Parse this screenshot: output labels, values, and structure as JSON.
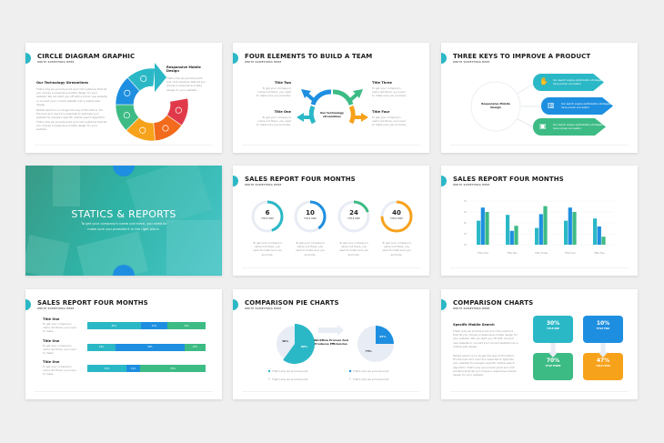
{
  "colors": {
    "teal": "#2bb8c6",
    "blue": "#1e8fe0",
    "green": "#3dbb85",
    "orange": "#f7a21b",
    "dark_orange": "#f26a1b",
    "red": "#e03a4a",
    "track": "#e8ecf4"
  },
  "subtitle": "WRITE SOMETHING HERE",
  "slide1": {
    "title": "CIRCLE DIAGRAM GRAPHIC",
    "heading": "Our Technology Streamlines",
    "para1": "That's why we provide point and click solutions that let you choose a responsive mobile design for your website. We can start you off with a brand new website or convert your current website into a mobile web design.",
    "para2": "Mobile search is no longer the way of the future. It's the here and now! It is essential to optimize your website for Google's specific mobile search algorithm. That's why we provide point and click solutions that let you choose a responsive mobile design for your website.",
    "callout_title": "Responsive Mobile Design",
    "callout_text": "That's why we provide point and click solutions that let you choose a responsive mobile design for your website.",
    "segments": [
      "teal",
      "blue",
      "green",
      "orange",
      "dark_orange",
      "red"
    ]
  },
  "slide2": {
    "title": "FOUR ELEMENTS TO BUILD A TEAM",
    "center": "Our technology streamlines",
    "items": [
      {
        "title": "Title Two",
        "text": "To get your company's name out there, you need to make sure you promote."
      },
      {
        "title": "Title One",
        "text": "To get your company's name out there, you need to make sure you promote."
      },
      {
        "title": "Title Three",
        "text": "To get your company's name out there, you need to make sure you promote."
      },
      {
        "title": "Title Four",
        "text": "To get your company's name out there, you need to make sure you promote."
      }
    ]
  },
  "slide3": {
    "title": "THREE KEYS TO IMPROVE A PRODUCT",
    "center": "Responsive Mobile Design",
    "keys": [
      {
        "text": "Our search engine optimization strategies have proven successful",
        "icon": "hand-coin-icon"
      },
      {
        "text": "Our search engine optimization strategies have proven successful",
        "icon": "bar-chart-icon"
      },
      {
        "text": "Our search engine optimization strategies have proven successful",
        "icon": "briefcase-icon"
      }
    ]
  },
  "slide4": {
    "title": "STATICS & REPORTS",
    "text": "To get your company's name out there, you need to make sure you promote it in the right place."
  },
  "slide5": {
    "title": "SALES REPORT FOUR MONTHS",
    "donuts": [
      {
        "value": "6",
        "label": "TITLE ONE",
        "progress": 0.45,
        "color": "teal"
      },
      {
        "value": "10",
        "label": "TITLE ONE",
        "progress": 0.4,
        "color": "blue"
      },
      {
        "value": "24",
        "label": "TITLE ONE",
        "progress": 0.2,
        "color": "green"
      },
      {
        "value": "40",
        "label": "TITLE ONE",
        "progress": 0.75,
        "color": "orange"
      }
    ],
    "caption": "To get your company's name out there, you need to make sure you promote."
  },
  "slide6": {
    "title": "SALES REPORT FOUR MONTHS"
  },
  "chart_data": {
    "type": "bar",
    "categories": [
      "Title One",
      "Title Two",
      "Title Three",
      "Title Four",
      "Title Five"
    ],
    "series": [
      {
        "values": [
          43,
          51,
          33,
          43,
          46
        ],
        "color": "#2bb8c6"
      },
      {
        "values": [
          61,
          29,
          52,
          61,
          35
        ],
        "color": "#1e8fe0"
      },
      {
        "values": [
          55,
          36,
          63,
          55,
          21
        ],
        "color": "#3dbb85"
      }
    ],
    "yticks": [
      "70",
      "55",
      "40",
      "25",
      "10"
    ],
    "ylim": [
      10,
      70
    ],
    "grid": true,
    "title": "",
    "xlabel": "",
    "ylabel": ""
  },
  "slide7": {
    "title": "SALES REPORT FOUR MONTHS",
    "rows": [
      {
        "title": "Title One",
        "text": "To get your company's name out there, you need to make.",
        "segments": [
          {
            "v": 45,
            "label": "45%"
          },
          {
            "v": 23,
            "label": "23%"
          },
          {
            "v": 32,
            "label": "32%"
          }
        ]
      },
      {
        "title": "Title One",
        "text": "To get your company's name out there, you need to make.",
        "segments": [
          {
            "v": 24,
            "label": "24%"
          },
          {
            "v": 58,
            "label": "58%"
          },
          {
            "v": 18,
            "label": "18%"
          }
        ]
      },
      {
        "title": "Title One",
        "text": "To get your company's name out there, you need to make.",
        "segments": [
          {
            "v": 33,
            "label": "33%"
          },
          {
            "v": 12,
            "label": "12%"
          },
          {
            "v": 55,
            "label": "55%"
          }
        ]
      }
    ]
  },
  "slide8": {
    "title": "COMPARISON PIE CHARTS",
    "middle": "Workflow Process And Produces Efficiencies",
    "pies": [
      {
        "main": 60,
        "main_label": "60%",
        "rest_label": "40%",
        "color": "teal"
      },
      {
        "main": 25,
        "main_label": "25%",
        "rest_label": "75%",
        "color": "blue"
      }
    ],
    "legend": "That's why we provide point"
  },
  "slide9": {
    "title": "COMPARISON CHARTS",
    "heading": "Specific Mobile Search",
    "para1": "That's why we provide point and click solutions that let you choose a responsive mobile design for your website. We can start you off with a brand new website or convert your current website into a mobile web design.",
    "para2": "Mobile search is no longer the way of the future. It's the here and now! It is essential to optimize your website for Google's specific mobile search algorithm. That's why we provide point and click solutions that let you choose a responsive mobile design for your website.",
    "boxes": [
      {
        "value": "30%",
        "label": "TITLE ONE",
        "color": "teal"
      },
      {
        "value": "10%",
        "label": "TITLE TWO",
        "color": "blue"
      },
      {
        "value": "70%",
        "label": "TITLE THREE",
        "color": "green"
      },
      {
        "value": "47%",
        "label": "TITLE FOUR",
        "color": "orange"
      }
    ]
  }
}
